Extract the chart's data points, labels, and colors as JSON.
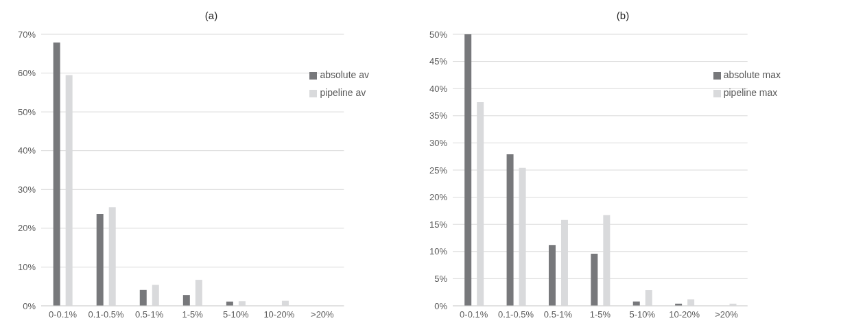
{
  "chart_data": [
    {
      "type": "bar",
      "title": "(a)",
      "categories": [
        "0-0.1%",
        "0.1-0.5%",
        "0.5-1%",
        "1-5%",
        "5-10%",
        "10-20%",
        ">20%"
      ],
      "series": [
        {
          "name": "absolute av",
          "color": "#77787b",
          "values": [
            67.9,
            23.7,
            4.1,
            2.8,
            1.1,
            0,
            0
          ]
        },
        {
          "name": "pipeline av",
          "color": "#d9dadc",
          "values": [
            59.5,
            25.4,
            5.4,
            6.7,
            1.2,
            1.3,
            0
          ]
        }
      ],
      "ylim": [
        0,
        70
      ],
      "yticks": [
        {
          "value": 0,
          "label": "0%"
        },
        {
          "value": 10,
          "label": "10%"
        },
        {
          "value": 20,
          "label": "20%"
        },
        {
          "value": 30,
          "label": "30%"
        },
        {
          "value": 40,
          "label": "40%"
        },
        {
          "value": 50,
          "label": "50%"
        },
        {
          "value": 60,
          "label": "60%"
        },
        {
          "value": 70,
          "label": "70%"
        }
      ],
      "grid": "y",
      "legend": "top right"
    },
    {
      "type": "bar",
      "title": "(b)",
      "categories": [
        "0-0.1%",
        "0.1-0.5%",
        "0.5-1%",
        "1-5%",
        "5-10%",
        "10-20%",
        ">20%"
      ],
      "series": [
        {
          "name": "absolute max",
          "color": "#77787b",
          "values": [
            50,
            27.9,
            11.2,
            9.6,
            0.8,
            0.4,
            0
          ]
        },
        {
          "name": "pipeline max",
          "color": "#d9dadc",
          "values": [
            37.5,
            25.4,
            15.8,
            16.7,
            2.9,
            1.2,
            0.4
          ]
        }
      ],
      "ylim": [
        0,
        50
      ],
      "yticks": [
        {
          "value": 0,
          "label": "0%"
        },
        {
          "value": 5,
          "label": "5%"
        },
        {
          "value": 10,
          "label": "10%"
        },
        {
          "value": 15,
          "label": "15%"
        },
        {
          "value": 20,
          "label": "20%"
        },
        {
          "value": 25,
          "label": "25%"
        },
        {
          "value": 30,
          "label": "30%"
        },
        {
          "value": 35,
          "label": "35%"
        },
        {
          "value": 40,
          "label": "40%"
        },
        {
          "value": 45,
          "label": "45%"
        },
        {
          "value": 50,
          "label": "50%"
        }
      ],
      "grid": "y",
      "legend": "top right"
    }
  ]
}
